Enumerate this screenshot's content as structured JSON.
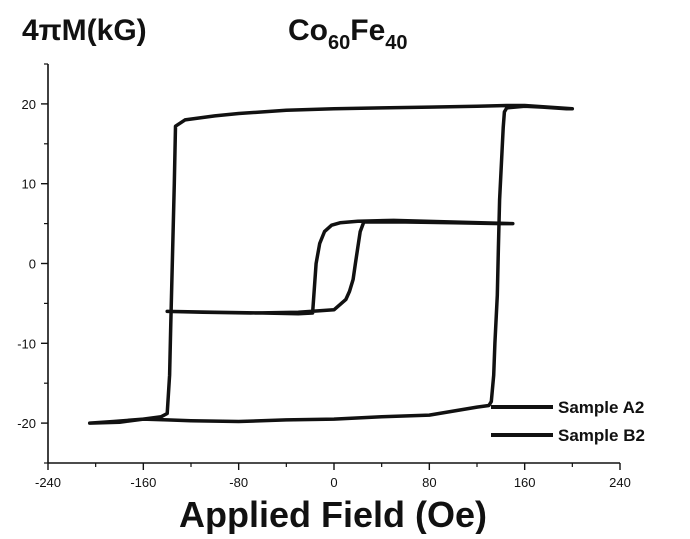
{
  "chart_data": {
    "type": "line",
    "title": "Co60Fe40",
    "title_parts": {
      "base1": "Co",
      "sub1": "60",
      "base2": "Fe",
      "sub2": "40"
    },
    "ylabel": "4πM(kG)",
    "xlabel": "Applied Field (Oe)",
    "xlim": [
      -240,
      240
    ],
    "ylim": [
      -25,
      25
    ],
    "xticks": [
      -240,
      -160,
      -80,
      0,
      80,
      160,
      240
    ],
    "yticks": [
      -20,
      -10,
      0,
      10,
      20
    ],
    "grid": false,
    "legend_position": "bottom-right",
    "series": [
      {
        "name": "Sample A2",
        "color": "#111111",
        "x": [
          -205,
          -180,
          -160,
          -145,
          -140,
          -138,
          -137,
          -136,
          -135,
          -134,
          -133,
          -125,
          -100,
          -80,
          -40,
          0,
          40,
          80,
          120,
          145,
          160,
          180,
          200,
          195,
          175,
          160,
          145,
          143,
          142,
          141,
          139,
          138,
          137,
          135,
          134,
          132,
          130,
          120,
          80,
          40,
          0,
          -40,
          -80,
          -120,
          -140,
          -160,
          -185,
          -205
        ],
        "y": [
          -20,
          -19.9,
          -19.5,
          -19.2,
          -18.8,
          -14,
          -8,
          -2,
          4,
          10,
          17.2,
          18,
          18.5,
          18.8,
          19.2,
          19.4,
          19.5,
          19.6,
          19.7,
          19.8,
          19.8,
          19.6,
          19.4,
          19.4,
          19.6,
          19.7,
          19.5,
          19,
          17,
          14,
          8,
          2,
          -4,
          -10,
          -14,
          -17.3,
          -17.8,
          -18,
          -19,
          -19.2,
          -19.5,
          -19.6,
          -19.8,
          -19.7,
          -19.6,
          -19.5,
          -19.8,
          -20
        ]
      },
      {
        "name": "Sample B2",
        "color": "#111111",
        "x": [
          -140,
          -100,
          -60,
          -30,
          -18,
          -15,
          -12,
          -8,
          -2,
          5,
          20,
          50,
          100,
          150,
          140,
          100,
          60,
          25,
          22,
          20,
          18,
          16,
          13,
          10,
          0,
          -30,
          -70,
          -110,
          -140
        ],
        "y": [
          -6,
          -6.1,
          -6.2,
          -6.3,
          -6.2,
          0,
          2.5,
          4,
          4.8,
          5.1,
          5.3,
          5.4,
          5.2,
          5,
          5,
          5.1,
          5.2,
          5.2,
          4,
          2,
          0,
          -2,
          -3.5,
          -4.5,
          -5.8,
          -6.1,
          -6.2,
          -6.1,
          -6
        ]
      }
    ]
  }
}
